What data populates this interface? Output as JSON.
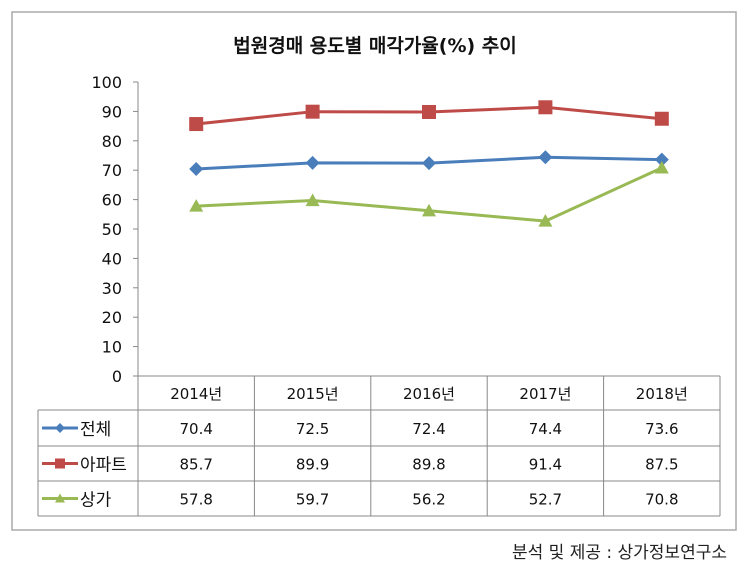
{
  "chart_data": {
    "type": "line",
    "title": "법원경매 용도별 매각가율(%) 추이",
    "categories": [
      "2014년",
      "2015년",
      "2016년",
      "2017년",
      "2018년"
    ],
    "ylim": [
      0,
      100
    ],
    "yticks": [
      0,
      10,
      20,
      30,
      40,
      50,
      60,
      70,
      80,
      90,
      100
    ],
    "grid": false,
    "legend_placement": "data-table",
    "series": [
      {
        "name": "전체",
        "values": [
          70.4,
          72.5,
          72.4,
          74.4,
          73.6
        ],
        "labels": [
          "70.4",
          "72.5",
          "72.4",
          "74.4",
          "73.6"
        ],
        "color": "#4a7ebb",
        "marker": "diamond"
      },
      {
        "name": "아파트",
        "values": [
          85.7,
          89.9,
          89.8,
          91.4,
          87.5
        ],
        "labels": [
          "85.7",
          "89.9",
          "89.8",
          "91.4",
          "87.5"
        ],
        "color": "#be4b48",
        "marker": "square"
      },
      {
        "name": "상가",
        "values": [
          57.8,
          59.7,
          56.2,
          52.7,
          70.8
        ],
        "labels": [
          "57.8",
          "59.7",
          "56.2",
          "52.7",
          "70.8"
        ],
        "color": "#98b954",
        "marker": "triangle"
      }
    ]
  },
  "source": "분석 및 제공 : 상가정보연구소"
}
